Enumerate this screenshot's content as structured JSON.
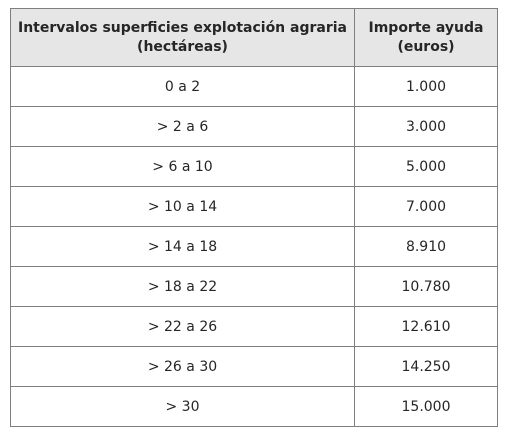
{
  "table": {
    "headers": {
      "col1_line1": "Intervalos superficies explotación agraria",
      "col1_line2": "(hectáreas)",
      "col2_line1": "Importe ayuda",
      "col2_line2": "(euros)"
    },
    "rows": [
      {
        "interval": "0 a 2",
        "amount": "1.000"
      },
      {
        "interval": "> 2 a 6",
        "amount": "3.000"
      },
      {
        "interval": "> 6 a 10",
        "amount": "5.000"
      },
      {
        "interval": "> 10 a 14",
        "amount": "7.000"
      },
      {
        "interval": "> 14 a 18",
        "amount": "8.910"
      },
      {
        "interval": "> 18 a 22",
        "amount": "10.780"
      },
      {
        "interval": "> 22 a 26",
        "amount": "12.610"
      },
      {
        "interval": "> 26 a 30",
        "amount": "14.250"
      },
      {
        "interval": "> 30",
        "amount": "15.000"
      }
    ]
  }
}
